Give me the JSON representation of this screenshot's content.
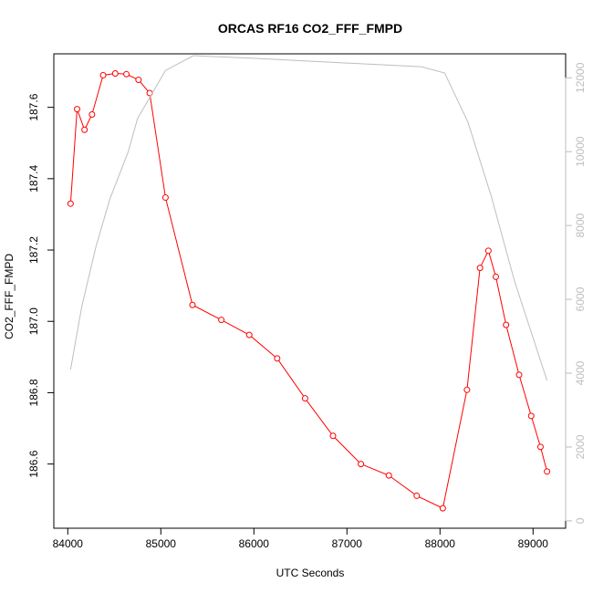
{
  "chart_data": {
    "type": "line",
    "title": "ORCAS RF16 CO2_FFF_FMPD",
    "xlabel": "UTC Seconds",
    "ylabel": "CO2_FFF_FMPD",
    "y2label": "",
    "xlim": [
      83850,
      89350
    ],
    "ylim": [
      186.42,
      187.75
    ],
    "y2lim": [
      -200,
      12650
    ],
    "x_ticks": [
      84000,
      85000,
      86000,
      87000,
      88000,
      89000
    ],
    "y_ticks": [
      186.6,
      186.8,
      187.0,
      187.2,
      187.4,
      187.6
    ],
    "y2_ticks": [
      0,
      2000,
      4000,
      6000,
      8000,
      10000,
      12000
    ],
    "grid": false,
    "colors": {
      "primary": "#ff0000",
      "secondary": "#bebebe",
      "axis": "#000000"
    },
    "series": [
      {
        "axis": "left",
        "style": "line+points",
        "x": [
          84030,
          84100,
          84180,
          84260,
          84380,
          84510,
          84630,
          84760,
          84880,
          85050,
          85340,
          85650,
          85950,
          86250,
          86550,
          86850,
          87150,
          87450,
          87750,
          88030,
          88290,
          88430,
          88520,
          88600,
          88710,
          88850,
          88980,
          89080,
          89150
        ],
        "y": [
          187.33,
          187.595,
          187.537,
          187.58,
          187.69,
          187.695,
          187.693,
          187.677,
          187.64,
          187.347,
          187.046,
          187.004,
          186.962,
          186.896,
          186.784,
          186.679,
          186.6,
          186.568,
          186.511,
          186.476,
          186.808,
          187.15,
          187.198,
          187.125,
          186.99,
          186.85,
          186.735,
          186.648,
          186.579
        ]
      },
      {
        "axis": "right",
        "style": "line",
        "x": [
          84030,
          84150,
          84300,
          84450,
          84650,
          84750,
          85050,
          85350,
          86000,
          87000,
          87800,
          88050,
          88300,
          88550,
          88800,
          89150
        ],
        "y": [
          4100,
          5800,
          7400,
          8700,
          10000,
          10900,
          12200,
          12600,
          12530,
          12400,
          12300,
          12130,
          10800,
          8800,
          6500,
          3800
        ]
      }
    ]
  }
}
